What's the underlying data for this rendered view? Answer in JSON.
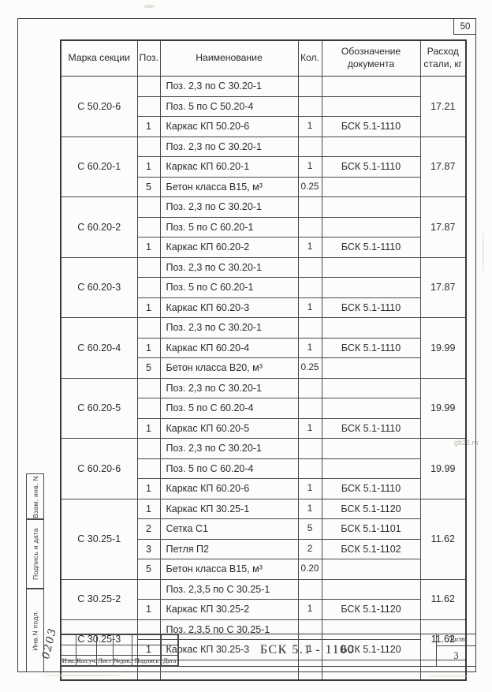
{
  "page": {
    "number": "50",
    "watermark": "gb22.ru"
  },
  "table": {
    "headers": {
      "mark": "Марка секции",
      "poz": "Поз.",
      "name": "Наименование",
      "qty": "Кол.",
      "doc": "Обозначение документа",
      "consumption": "Расход стали, кг"
    },
    "groups": [
      {
        "mark": "С 50.20-6",
        "consumption": "17.21",
        "rows": [
          {
            "poz": "",
            "name": "Поз. 2,3 по С 30.20-1",
            "qty": "",
            "doc": ""
          },
          {
            "poz": "",
            "name": "Поз. 5 по С 50.20-4",
            "qty": "",
            "doc": ""
          },
          {
            "poz": "1",
            "name": "Каркас КП 50.20-6",
            "qty": "1",
            "doc": "БСК 5.1-1110"
          }
        ]
      },
      {
        "mark": "С 60.20-1",
        "consumption": "17.87",
        "rows": [
          {
            "poz": "",
            "name": "Поз. 2,3 по С 30.20-1",
            "qty": "",
            "doc": ""
          },
          {
            "poz": "1",
            "name": "Каркас КП 60.20-1",
            "qty": "1",
            "doc": "БСК 5.1-1110"
          },
          {
            "poz": "5",
            "name": "Бетон класса В15, м³",
            "qty": "0.25",
            "doc": ""
          }
        ]
      },
      {
        "mark": "С 60.20-2",
        "consumption": "17.87",
        "rows": [
          {
            "poz": "",
            "name": "Поз. 2,3 по С 30.20-1",
            "qty": "",
            "doc": ""
          },
          {
            "poz": "",
            "name": "Поз. 5 по С 60.20-1",
            "qty": "",
            "doc": ""
          },
          {
            "poz": "1",
            "name": "Каркас КП 60.20-2",
            "qty": "1",
            "doc": "БСК 5.1-1110"
          }
        ]
      },
      {
        "mark": "С 60.20-3",
        "consumption": "17.87",
        "rows": [
          {
            "poz": "",
            "name": "Поз. 2,3 по С 30.20-1",
            "qty": "",
            "doc": ""
          },
          {
            "poz": "",
            "name": "Поз. 5 по С 60.20-1",
            "qty": "",
            "doc": ""
          },
          {
            "poz": "1",
            "name": "Каркас КП 60.20-3",
            "qty": "1",
            "doc": "БСК 5.1-1110"
          }
        ]
      },
      {
        "mark": "С 60.20-4",
        "consumption": "19.99",
        "rows": [
          {
            "poz": "",
            "name": "Поз. 2,3 по С 30.20-1",
            "qty": "",
            "doc": ""
          },
          {
            "poz": "1",
            "name": "Каркас КП 60.20-4",
            "qty": "1",
            "doc": "БСК 5.1-1110"
          },
          {
            "poz": "5",
            "name": "Бетон класса В20, м³",
            "qty": "0.25",
            "doc": ""
          }
        ]
      },
      {
        "mark": "С 60.20-5",
        "consumption": "19.99",
        "rows": [
          {
            "poz": "",
            "name": "Поз. 2,3 по С 30.20-1",
            "qty": "",
            "doc": ""
          },
          {
            "poz": "",
            "name": "Поз. 5 по С 60.20-4",
            "qty": "",
            "doc": ""
          },
          {
            "poz": "1",
            "name": "Каркас КП 60.20-5",
            "qty": "1",
            "doc": "БСК 5.1-1110"
          }
        ]
      },
      {
        "mark": "С 60.20-6",
        "consumption": "19.99",
        "rows": [
          {
            "poz": "",
            "name": "Поз. 2,3 по С 30.20-1",
            "qty": "",
            "doc": ""
          },
          {
            "poz": "",
            "name": "Поз. 5 по С 60.20-4",
            "qty": "",
            "doc": ""
          },
          {
            "poz": "1",
            "name": "Каркас КП 60.20-6",
            "qty": "1",
            "doc": "БСК 5.1-1110"
          }
        ]
      },
      {
        "mark": "С 30.25-1",
        "consumption": "11.62",
        "rows": [
          {
            "poz": "1",
            "name": "Каркас КП 30.25-1",
            "qty": "1",
            "doc": "БСК 5.1-1120"
          },
          {
            "poz": "2",
            "name": "Сетка  С1",
            "qty": "5",
            "doc": "БСК 5.1-1101"
          },
          {
            "poz": "3",
            "name": "Петля П2",
            "qty": "2",
            "doc": "БСК 5.1-1102"
          },
          {
            "poz": "5",
            "name": "Бетон класса В15, м³",
            "qty": "0.20",
            "doc": ""
          }
        ]
      },
      {
        "mark": "С 30.25-2",
        "consumption": "11.62",
        "rows": [
          {
            "poz": "",
            "name": "Поз. 2,3,5 по С 30.25-1",
            "qty": "",
            "doc": ""
          },
          {
            "poz": "1",
            "name": "Каркас КП 30.25-2",
            "qty": "1",
            "doc": "БСК 5.1-1120"
          }
        ]
      },
      {
        "mark": "С 30.25-3",
        "consumption": "11.62",
        "rows": [
          {
            "poz": "",
            "name": "Поз. 2,3,5 по С 30.25-1",
            "qty": "",
            "doc": ""
          },
          {
            "poz": "1",
            "name": "Каркас КП 30.25-3",
            "qty": "1",
            "doc": "БСК 5.1-1120"
          }
        ]
      },
      {
        "mark": "",
        "consumption": "",
        "rows": [
          {
            "poz": "",
            "name": "",
            "qty": "",
            "doc": ""
          }
        ]
      }
    ]
  },
  "side_strip": {
    "labels": [
      "Взам. инв. N",
      "Подпись и дата",
      "Инв.N подл."
    ],
    "inventory_number": "0203"
  },
  "title_block": {
    "revision_columns": [
      "Изм.",
      "Кол.уч.",
      "Лист",
      "№док.",
      "Подпись",
      "Дата"
    ],
    "doc_number": "БСК 5.1 - 1100",
    "sheet_label": "Лист",
    "sheet_number": "3"
  }
}
